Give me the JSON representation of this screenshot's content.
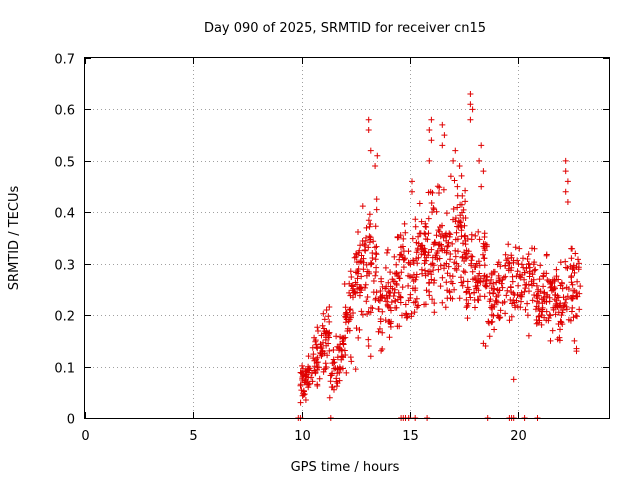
{
  "chart_data": {
    "type": "scatter",
    "title": "Day 090 of 2025, SRMTID for receiver cn15",
    "xlabel": "GPS time / hours",
    "ylabel": "SRMTID / TECUs",
    "xlim": [
      0,
      24.2
    ],
    "ylim": [
      0,
      0.7
    ],
    "xticks": [
      0,
      5,
      10,
      15,
      20
    ],
    "yticks": [
      0,
      0.1,
      0.2,
      0.3,
      0.4,
      0.5,
      0.6,
      0.7
    ],
    "ytick_labels": [
      "0",
      "0.1",
      "0.2",
      "0.3",
      "0.4",
      "0.5",
      "0.6",
      "0.7"
    ],
    "grid": true,
    "marker": "+",
    "color": "#e00000",
    "segments": [
      {
        "x": [
          9.9,
          10.5
        ],
        "y": [
          0.06,
          0.09
        ],
        "spread": 0.025,
        "n": 45
      },
      {
        "x": [
          10.5,
          11.3
        ],
        "y": [
          0.1,
          0.17
        ],
        "spread": 0.04,
        "n": 70
      },
      {
        "x": [
          11.3,
          11.9
        ],
        "y": [
          0.07,
          0.13
        ],
        "spread": 0.035,
        "n": 40
      },
      {
        "x": [
          11.9,
          12.6
        ],
        "y": [
          0.16,
          0.28
        ],
        "spread": 0.06,
        "n": 60
      },
      {
        "x": [
          12.6,
          13.5
        ],
        "y": [
          0.27,
          0.32
        ],
        "spread": 0.08,
        "n": 80
      },
      {
        "x": [
          13.5,
          14.8
        ],
        "y": [
          0.21,
          0.3
        ],
        "spread": 0.06,
        "n": 100
      },
      {
        "x": [
          14.8,
          15.6
        ],
        "y": [
          0.22,
          0.34
        ],
        "spread": 0.06,
        "n": 60
      },
      {
        "x": [
          15.6,
          16.6
        ],
        "y": [
          0.3,
          0.35
        ],
        "spread": 0.08,
        "n": 90
      },
      {
        "x": [
          16.6,
          17.6
        ],
        "y": [
          0.28,
          0.36
        ],
        "spread": 0.08,
        "n": 90
      },
      {
        "x": [
          17.6,
          18.6
        ],
        "y": [
          0.25,
          0.3
        ],
        "spread": 0.06,
        "n": 80
      },
      {
        "x": [
          18.6,
          19.6
        ],
        "y": [
          0.22,
          0.27
        ],
        "spread": 0.05,
        "n": 70
      },
      {
        "x": [
          19.6,
          20.8
        ],
        "y": [
          0.25,
          0.28
        ],
        "spread": 0.05,
        "n": 80
      },
      {
        "x": [
          20.8,
          21.8
        ],
        "y": [
          0.22,
          0.25
        ],
        "spread": 0.045,
        "n": 80
      },
      {
        "x": [
          21.8,
          22.9
        ],
        "y": [
          0.22,
          0.27
        ],
        "spread": 0.05,
        "n": 80
      }
    ],
    "points": [
      [
        13.1,
        0.58
      ],
      [
        13.1,
        0.56
      ],
      [
        13.5,
        0.51
      ],
      [
        13.4,
        0.49
      ],
      [
        13.2,
        0.52
      ],
      [
        16.0,
        0.58
      ],
      [
        15.9,
        0.56
      ],
      [
        16.0,
        0.54
      ],
      [
        15.9,
        0.5
      ],
      [
        16.5,
        0.57
      ],
      [
        16.6,
        0.55
      ],
      [
        16.5,
        0.53
      ],
      [
        17.1,
        0.52
      ],
      [
        17.0,
        0.5
      ],
      [
        17.3,
        0.49
      ],
      [
        17.8,
        0.63
      ],
      [
        17.8,
        0.61
      ],
      [
        17.9,
        0.6
      ],
      [
        17.8,
        0.58
      ],
      [
        18.3,
        0.53
      ],
      [
        18.2,
        0.5
      ],
      [
        18.4,
        0.48
      ],
      [
        18.3,
        0.45
      ],
      [
        22.2,
        0.5
      ],
      [
        22.2,
        0.48
      ],
      [
        22.3,
        0.46
      ],
      [
        22.2,
        0.44
      ],
      [
        22.3,
        0.42
      ],
      [
        15.1,
        0.46
      ],
      [
        15.1,
        0.44
      ],
      [
        16.9,
        0.47
      ],
      [
        17.2,
        0.45
      ],
      [
        19.8,
        0.075
      ],
      [
        10.2,
        0.035
      ],
      [
        10.1,
        0.045
      ],
      [
        11.4,
        0.06
      ],
      [
        11.5,
        0.055
      ],
      [
        22.7,
        0.13
      ],
      [
        22.7,
        0.135
      ],
      [
        22.6,
        0.15
      ],
      [
        13.1,
        0.14
      ],
      [
        13.2,
        0.12
      ],
      [
        12.3,
        0.11
      ],
      [
        12.5,
        0.095
      ],
      [
        18.5,
        0.14
      ],
      [
        18.4,
        0.145
      ],
      [
        20.5,
        0.16
      ],
      [
        21.1,
        0.2
      ],
      [
        21.3,
        0.19
      ],
      [
        21.5,
        0.15
      ],
      [
        21.6,
        0.17
      ]
    ],
    "zero_points": [
      9.85,
      9.95,
      11.35,
      14.6,
      14.7,
      14.8,
      14.95,
      15.25,
      15.8,
      18.6,
      19.6,
      19.7,
      19.8,
      20.3,
      20.9
    ]
  }
}
